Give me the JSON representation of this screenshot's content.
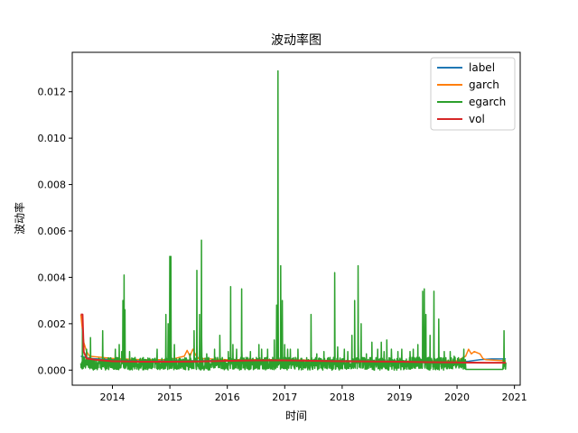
{
  "chart_data": {
    "type": "line",
    "title": "波动率图",
    "xlabel": "时间",
    "ylabel": "波动率",
    "xlim": [
      2013.3,
      2021.1
    ],
    "ylim": [
      -0.00065,
      0.0137
    ],
    "xticks": [
      2014,
      2015,
      2016,
      2017,
      2018,
      2019,
      2020,
      2021
    ],
    "xtick_labels": [
      "2014",
      "2015",
      "2016",
      "2017",
      "2018",
      "2019",
      "2020",
      "2021"
    ],
    "yticks": [
      0,
      0.002,
      0.004,
      0.006,
      0.008,
      0.01,
      0.012
    ],
    "ytick_labels": [
      "0.000",
      "0.002",
      "0.004",
      "0.006",
      "0.008",
      "0.010",
      "0.012"
    ],
    "grid": false,
    "legend_position": "top-right",
    "series": [
      {
        "name": "label",
        "color": "#1f77b4",
        "x": [
          2013.45,
          2013.6,
          2014.0,
          2014.5,
          2015.0,
          2015.5,
          2016.0,
          2016.5,
          2017.0,
          2017.5,
          2018.0,
          2018.5,
          2019.0,
          2019.5,
          2020.0,
          2020.2,
          2020.4,
          2020.6,
          2020.85
        ],
        "y": [
          0.0006,
          0.0005,
          0.00045,
          0.0004,
          0.0004,
          0.0004,
          0.00042,
          0.00043,
          0.00043,
          0.00041,
          0.0004,
          0.00039,
          0.00037,
          0.00036,
          0.00035,
          0.00038,
          0.00045,
          0.00048,
          0.00048
        ]
      },
      {
        "name": "garch",
        "color": "#ff7f0e",
        "x": [
          2013.45,
          2013.5,
          2013.55,
          2013.6,
          2014.0,
          2014.5,
          2015.0,
          2015.25,
          2015.3,
          2015.35,
          2015.4,
          2015.45,
          2015.5,
          2016.0,
          2017.0,
          2018.0,
          2019.0,
          2020.0,
          2020.15,
          2020.2,
          2020.25,
          2020.3,
          2020.4,
          2020.45,
          2020.5,
          2020.85
        ],
        "y": [
          0.0024,
          0.0012,
          0.0008,
          0.0006,
          0.0005,
          0.00045,
          0.00045,
          0.0006,
          0.00085,
          0.0006,
          0.0009,
          0.00065,
          0.0005,
          0.00045,
          0.00045,
          0.0004,
          0.00038,
          0.0004,
          0.0006,
          0.0009,
          0.0007,
          0.0008,
          0.0007,
          0.0005,
          0.00045,
          0.0004
        ]
      },
      {
        "name": "egarch",
        "color": "#2ca02c",
        "peaks": [
          [
            2013.48,
            0.0018
          ],
          [
            2013.55,
            0.0009
          ],
          [
            2013.62,
            0.0014
          ],
          [
            2013.83,
            0.0017
          ],
          [
            2014.05,
            0.0009
          ],
          [
            2014.12,
            0.0011
          ],
          [
            2014.16,
            0.0008
          ],
          [
            2014.18,
            0.003
          ],
          [
            2014.2,
            0.0041
          ],
          [
            2014.22,
            0.0026
          ],
          [
            2014.3,
            0.0008
          ],
          [
            2014.78,
            0.0009
          ],
          [
            2014.93,
            0.0024
          ],
          [
            2014.97,
            0.002
          ],
          [
            2015.0,
            0.0049
          ],
          [
            2015.02,
            0.0049
          ],
          [
            2015.08,
            0.0011
          ],
          [
            2015.35,
            0.0007
          ],
          [
            2015.42,
            0.0017
          ],
          [
            2015.47,
            0.0043
          ],
          [
            2015.52,
            0.0024
          ],
          [
            2015.55,
            0.0056
          ],
          [
            2015.64,
            0.0007
          ],
          [
            2015.78,
            0.0009
          ],
          [
            2015.87,
            0.0015
          ],
          [
            2016.02,
            0.0008
          ],
          [
            2016.06,
            0.0036
          ],
          [
            2016.1,
            0.0011
          ],
          [
            2016.16,
            0.0009
          ],
          [
            2016.25,
            0.0035
          ],
          [
            2016.4,
            0.0008
          ],
          [
            2016.55,
            0.0011
          ],
          [
            2016.6,
            0.0009
          ],
          [
            2016.7,
            0.0009
          ],
          [
            2016.82,
            0.0013
          ],
          [
            2016.86,
            0.0028
          ],
          [
            2016.88,
            0.0129
          ],
          [
            2016.93,
            0.0045
          ],
          [
            2016.96,
            0.003
          ],
          [
            2017.0,
            0.0011
          ],
          [
            2017.05,
            0.0009
          ],
          [
            2017.1,
            0.0009
          ],
          [
            2017.23,
            0.0009
          ],
          [
            2017.46,
            0.0024
          ],
          [
            2017.56,
            0.0007
          ],
          [
            2017.68,
            0.0008
          ],
          [
            2017.87,
            0.0042
          ],
          [
            2017.92,
            0.001
          ],
          [
            2018.04,
            0.0009
          ],
          [
            2018.1,
            0.0008
          ],
          [
            2018.17,
            0.0015
          ],
          [
            2018.22,
            0.003
          ],
          [
            2018.28,
            0.0045
          ],
          [
            2018.33,
            0.002
          ],
          [
            2018.42,
            0.0007
          ],
          [
            2018.52,
            0.0012
          ],
          [
            2018.62,
            0.0009
          ],
          [
            2018.68,
            0.0012
          ],
          [
            2018.73,
            0.0008
          ],
          [
            2018.78,
            0.0013
          ],
          [
            2018.86,
            0.0009
          ],
          [
            2018.97,
            0.0008
          ],
          [
            2019.04,
            0.0009
          ],
          [
            2019.18,
            0.0008
          ],
          [
            2019.24,
            0.0009
          ],
          [
            2019.32,
            0.0011
          ],
          [
            2019.4,
            0.0034
          ],
          [
            2019.43,
            0.0035
          ],
          [
            2019.46,
            0.0024
          ],
          [
            2019.53,
            0.0015
          ],
          [
            2019.6,
            0.0034
          ],
          [
            2019.68,
            0.0022
          ],
          [
            2019.78,
            0.0008
          ],
          [
            2019.88,
            0.0008
          ],
          [
            2019.95,
            0.0006
          ],
          [
            2020.12,
            0.0009
          ],
          [
            2020.82,
            0.0017
          ]
        ],
        "baseline": 0.0003
      },
      {
        "name": "vol",
        "color": "#d62728",
        "x": [
          2013.45,
          2013.48,
          2013.5,
          2013.55,
          2013.7,
          2014.0,
          2014.5,
          2015.0,
          2015.5,
          2016.0,
          2016.5,
          2017.0,
          2017.5,
          2018.0,
          2018.5,
          2019.0,
          2019.5,
          2020.0,
          2020.5,
          2020.85
        ],
        "y": [
          0.0024,
          0.0024,
          0.0008,
          0.0005,
          0.00045,
          0.00038,
          0.00036,
          0.00036,
          0.00037,
          0.0004,
          0.00042,
          0.00042,
          0.0004,
          0.00038,
          0.00037,
          0.00036,
          0.00034,
          0.00033,
          0.00032,
          0.00032
        ]
      }
    ]
  }
}
